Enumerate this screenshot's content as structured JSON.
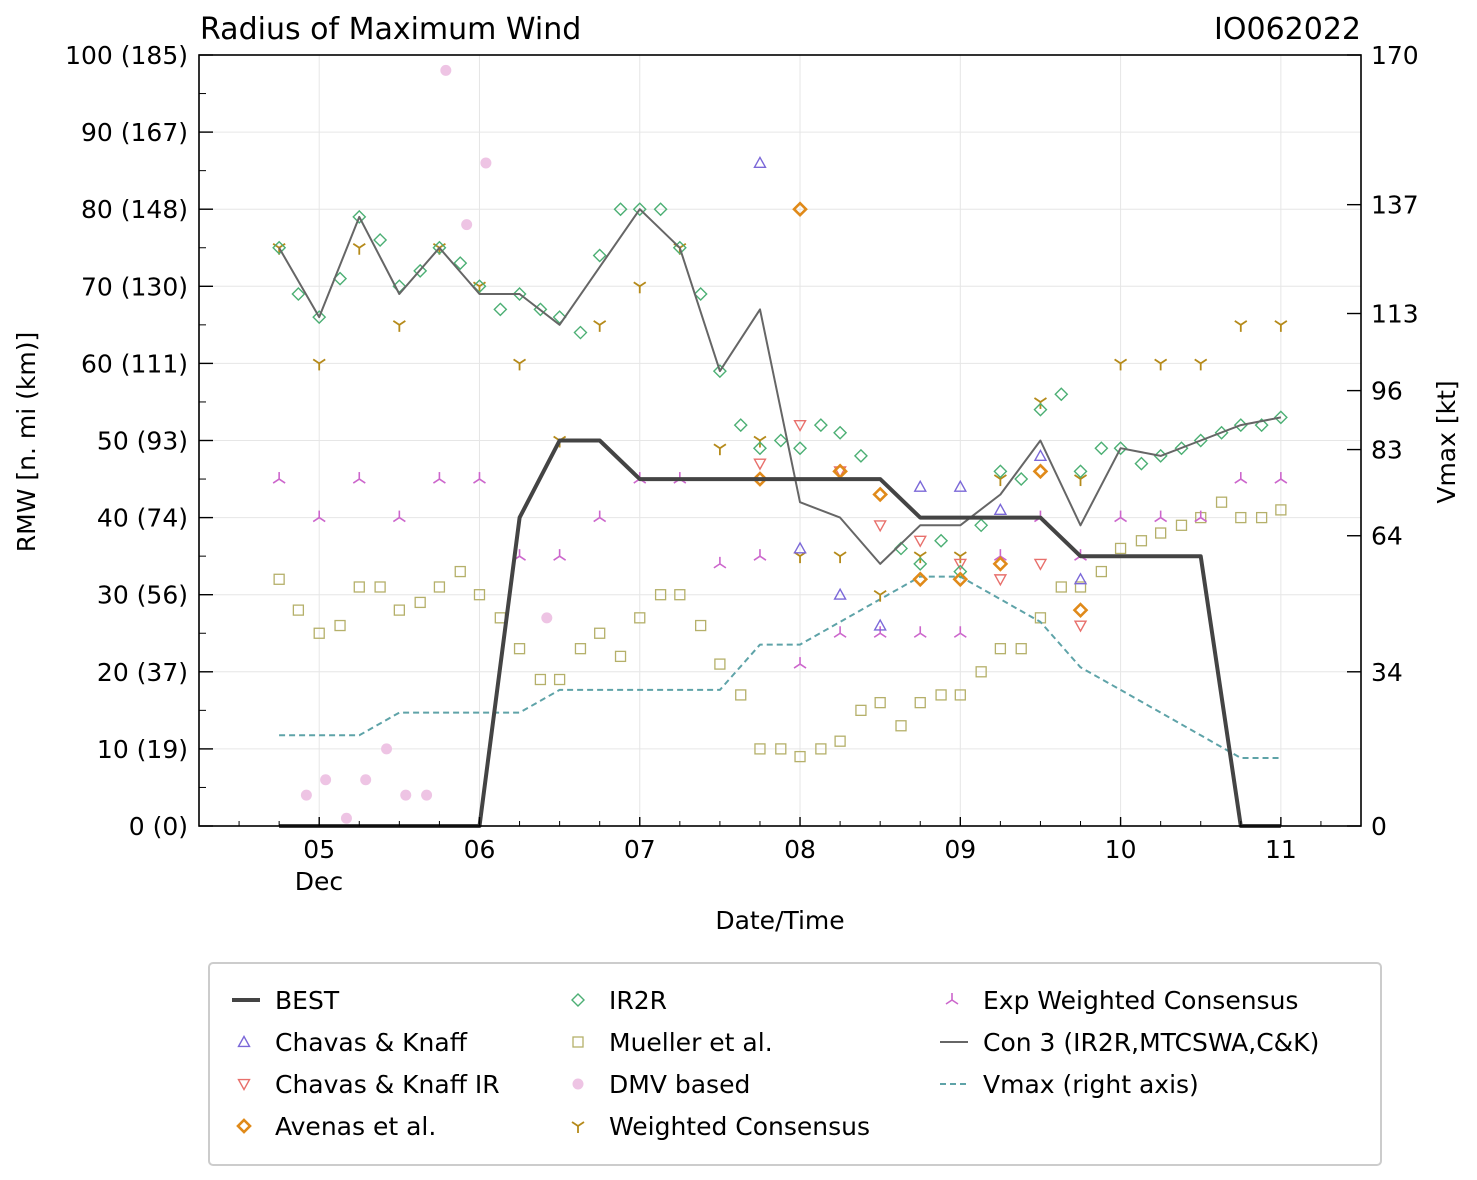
{
  "chart_data": {
    "type": "line",
    "title": "Radius of Maximum Wind",
    "storm_id": "IO062022",
    "xlabel": "Date/Time",
    "ylabel_left": "RMW [n. mi (km)]",
    "ylabel_right": "Vmax [kt]",
    "xlim": [
      4.25,
      11.5
    ],
    "ylim_left": [
      0,
      100
    ],
    "ylim_right": [
      0,
      170
    ],
    "x_ticks": [
      5,
      6,
      7,
      8,
      9,
      10,
      11
    ],
    "x_tick_labels": [
      "05",
      "06",
      "07",
      "08",
      "09",
      "10",
      "11"
    ],
    "x_month_label": "Dec",
    "y_ticks_left": [
      0,
      10,
      20,
      30,
      40,
      50,
      60,
      70,
      80,
      90,
      100
    ],
    "y_tick_labels_left": [
      "0 (0)",
      "10 (19)",
      "20 (37)",
      "30 (56)",
      "40 (74)",
      "50 (93)",
      "60 (111)",
      "70 (130)",
      "80 (148)",
      "90 (167)",
      "100 (185)"
    ],
    "y_ticks_right": [
      0,
      34,
      64,
      83,
      96,
      113,
      137,
      170
    ],
    "y_tick_labels_right": [
      "0",
      "34",
      "64",
      "83",
      "96",
      "113",
      "137",
      "170"
    ],
    "legend": [
      {
        "key": "best",
        "label": "BEST"
      },
      {
        "key": "ck",
        "label": "Chavas & Knaff"
      },
      {
        "key": "ckir",
        "label": "Chavas & Knaff IR"
      },
      {
        "key": "avenas",
        "label": "Avenas et al."
      },
      {
        "key": "ir2r",
        "label": "IR2R"
      },
      {
        "key": "mueller",
        "label": "Mueller et al."
      },
      {
        "key": "dmv",
        "label": "DMV based"
      },
      {
        "key": "wc",
        "label": "Weighted Consensus"
      },
      {
        "key": "ewc",
        "label": "Exp Weighted Consensus"
      },
      {
        "key": "con3",
        "label": "Con 3 (IR2R,MTCSWA,C&K)"
      },
      {
        "key": "vmax",
        "label": "Vmax (right axis)"
      }
    ],
    "colors": {
      "best": "#444444",
      "ck": "#7b68d8",
      "ckir": "#e8706c",
      "avenas": "#e08a1a",
      "ir2r": "#4caf74",
      "mueller": "#b5b06a",
      "dmv": "#eec4e4",
      "wc": "#b58a1a",
      "ewc": "#cc66cc",
      "con3": "#666666",
      "vmax": "#5ea3a8"
    },
    "series": [
      {
        "key": "best",
        "name": "BEST",
        "x": [
          4.75,
          5.0,
          5.25,
          5.5,
          5.75,
          6.0,
          6.25,
          6.5,
          6.75,
          7.0,
          7.25,
          7.5,
          7.75,
          8.0,
          8.25,
          8.5,
          8.75,
          9.0,
          9.25,
          9.5,
          9.75,
          10.0,
          10.25,
          10.5,
          10.75,
          11.0
        ],
        "y": [
          0,
          0,
          0,
          0,
          0,
          0,
          40,
          50,
          50,
          45,
          45,
          45,
          45,
          45,
          45,
          45,
          40,
          40,
          40,
          40,
          35,
          35,
          35,
          35,
          0,
          0
        ]
      },
      {
        "key": "con3",
        "name": "Con 3 (IR2R,MTCSWA,C&K)",
        "x": [
          4.75,
          5.0,
          5.25,
          5.5,
          5.75,
          6.0,
          6.25,
          6.5,
          7.0,
          7.25,
          7.5,
          7.75,
          8.0,
          8.25,
          8.5,
          8.75,
          9.0,
          9.25,
          9.5,
          9.75,
          10.0,
          10.25,
          10.5,
          10.75,
          11.0
        ],
        "y": [
          75,
          66,
          79,
          69,
          75,
          69,
          69,
          65,
          80,
          75,
          59,
          67,
          42,
          40,
          34,
          39,
          39,
          43,
          50,
          39,
          49,
          48,
          50,
          52,
          53
        ]
      },
      {
        "key": "vmax",
        "name": "Vmax (right axis)",
        "x": [
          4.75,
          5.0,
          5.25,
          5.5,
          5.75,
          6.0,
          6.25,
          6.5,
          6.75,
          7.0,
          7.25,
          7.5,
          7.75,
          8.0,
          8.25,
          8.5,
          8.75,
          9.0,
          9.25,
          9.5,
          9.75,
          10.0,
          10.25,
          10.5,
          10.75,
          11.0
        ],
        "y": [
          20,
          20,
          20,
          25,
          25,
          25,
          25,
          30,
          30,
          30,
          30,
          30,
          40,
          40,
          45,
          50,
          55,
          55,
          50,
          45,
          35,
          30,
          25,
          20,
          15,
          15
        ]
      },
      {
        "key": "ir2r",
        "name": "IR2R",
        "x": [
          4.75,
          4.87,
          5.0,
          5.13,
          5.25,
          5.38,
          5.5,
          5.63,
          5.75,
          5.88,
          6.0,
          6.13,
          6.25,
          6.38,
          6.5,
          6.63,
          6.75,
          6.88,
          7.0,
          7.13,
          7.25,
          7.38,
          7.5,
          7.63,
          7.75,
          7.88,
          8.0,
          8.13,
          8.25,
          8.38,
          8.5,
          8.63,
          8.75,
          8.88,
          9.0,
          9.13,
          9.25,
          9.38,
          9.5,
          9.63,
          9.75,
          9.88,
          10.0,
          10.13,
          10.25,
          10.38,
          10.5,
          10.63,
          10.75,
          10.88,
          11.0
        ],
        "y": [
          75,
          69,
          66,
          71,
          79,
          76,
          70,
          72,
          75,
          73,
          70,
          67,
          69,
          67,
          66,
          64,
          74,
          80,
          80,
          80,
          75,
          69,
          59,
          52,
          49,
          50,
          49,
          52,
          51,
          48,
          43,
          36,
          34,
          37,
          33,
          39,
          46,
          45,
          54,
          56,
          46,
          49,
          49,
          47,
          48,
          49,
          50,
          51,
          52,
          52,
          53
        ]
      },
      {
        "key": "mueller",
        "name": "Mueller et al.",
        "x": [
          4.75,
          4.87,
          5.0,
          5.13,
          5.25,
          5.38,
          5.5,
          5.63,
          5.75,
          5.88,
          6.0,
          6.13,
          6.25,
          6.38,
          6.5,
          6.63,
          6.75,
          6.88,
          7.0,
          7.13,
          7.25,
          7.38,
          7.5,
          7.63,
          7.75,
          7.88,
          8.0,
          8.13,
          8.25,
          8.38,
          8.5,
          8.63,
          8.75,
          8.88,
          9.0,
          9.13,
          9.25,
          9.38,
          9.5,
          9.63,
          9.75,
          9.88,
          10.0,
          10.13,
          10.25,
          10.38,
          10.5,
          10.63,
          10.75,
          10.88,
          11.0
        ],
        "y": [
          32,
          28,
          25,
          26,
          31,
          31,
          28,
          29,
          31,
          33,
          30,
          27,
          23,
          19,
          19,
          23,
          25,
          22,
          27,
          30,
          30,
          26,
          21,
          17,
          10,
          10,
          9,
          10,
          11,
          15,
          16,
          13,
          16,
          17,
          17,
          20,
          23,
          23,
          27,
          31,
          31,
          33,
          36,
          37,
          38,
          39,
          40,
          42,
          40,
          40,
          41
        ]
      },
      {
        "key": "wc",
        "name": "Weighted Consensus",
        "x": [
          4.75,
          5.0,
          5.25,
          5.5,
          5.75,
          6.0,
          6.25,
          6.5,
          6.75,
          7.0,
          7.25,
          7.5,
          7.75,
          8.0,
          8.25,
          8.5,
          8.75,
          9.0,
          9.25,
          9.5,
          9.75,
          10.0,
          10.25,
          10.5,
          10.75,
          11.0
        ],
        "y": [
          75,
          60,
          75,
          65,
          75,
          70,
          60,
          50,
          65,
          70,
          75,
          49,
          50,
          35,
          35,
          30,
          35,
          35,
          45,
          55,
          45,
          60,
          60,
          60,
          65,
          65
        ]
      },
      {
        "key": "ewc",
        "name": "Exp Weighted Consensus",
        "x": [
          4.75,
          5.0,
          5.25,
          5.5,
          5.75,
          6.0,
          6.25,
          6.5,
          6.75,
          7.0,
          7.25,
          7.5,
          7.75,
          8.0,
          8.25,
          8.5,
          8.75,
          9.0,
          9.25,
          9.5,
          9.75,
          10.0,
          10.25,
          10.5,
          10.75,
          11.0
        ],
        "y": [
          45,
          40,
          45,
          40,
          45,
          45,
          35,
          35,
          40,
          45,
          45,
          34,
          35,
          21,
          25,
          25,
          25,
          25,
          35,
          40,
          35,
          40,
          40,
          40,
          45,
          45
        ]
      },
      {
        "key": "ck",
        "name": "Chavas & Knaff",
        "x": [
          7.75,
          8.0,
          8.25,
          8.5,
          8.75,
          9.0,
          9.25,
          9.5,
          9.75
        ],
        "y": [
          86,
          36,
          30,
          26,
          44,
          44,
          41,
          48,
          32
        ]
      },
      {
        "key": "ckir",
        "name": "Chavas & Knaff IR",
        "x": [
          7.75,
          8.0,
          8.25,
          8.5,
          8.75,
          9.0,
          9.25,
          9.5,
          9.75
        ],
        "y": [
          47,
          52,
          46,
          39,
          37,
          34,
          32,
          34,
          26
        ]
      },
      {
        "key": "avenas",
        "name": "Avenas et al.",
        "x": [
          7.75,
          8.0,
          8.25,
          8.5,
          8.75,
          9.0,
          9.25,
          9.5,
          9.75
        ],
        "y": [
          45,
          80,
          46,
          43,
          32,
          32,
          34,
          46,
          28
        ]
      },
      {
        "key": "dmv",
        "name": "DMV based",
        "x": [
          4.92,
          5.04,
          5.17,
          5.29,
          5.42,
          5.54,
          5.67,
          5.79,
          5.92,
          6.04,
          6.42
        ],
        "y": [
          4,
          6,
          1,
          6,
          10,
          4,
          4,
          98,
          78,
          86,
          27
        ]
      }
    ]
  }
}
